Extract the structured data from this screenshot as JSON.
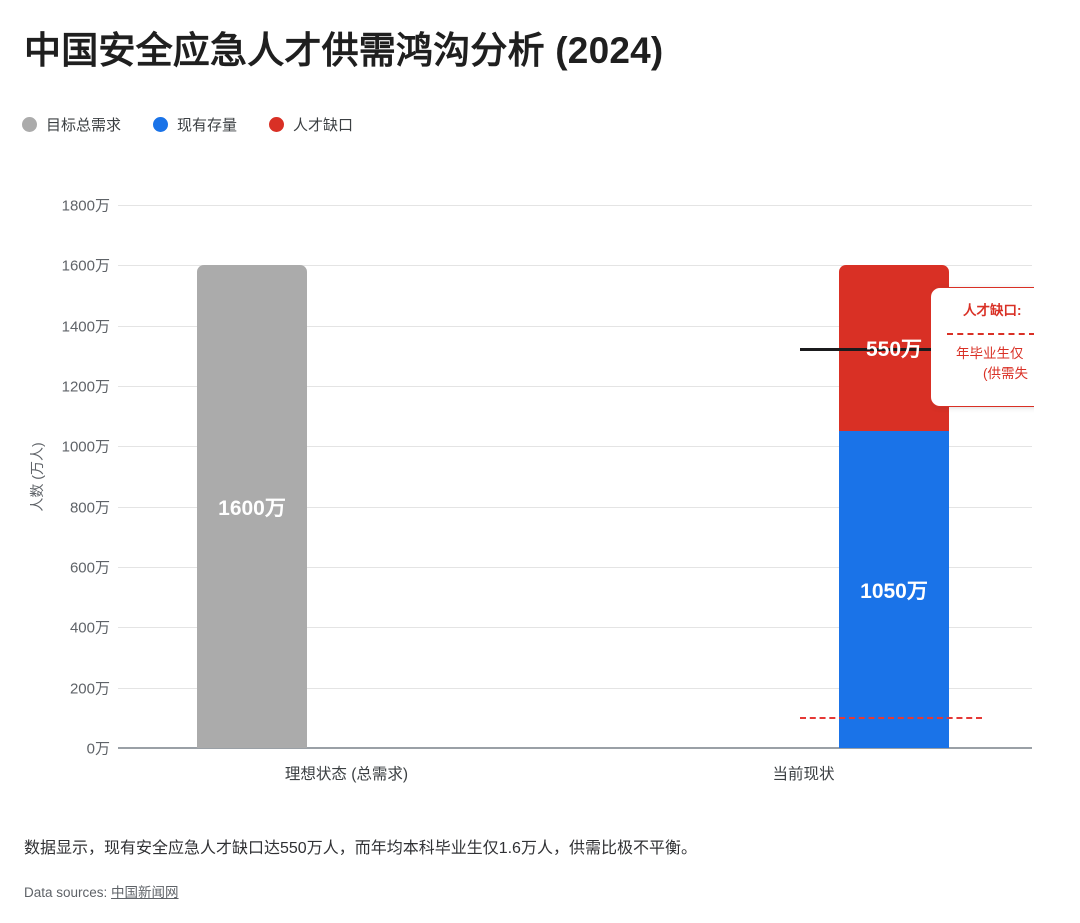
{
  "page": {
    "title": "中国安全应急人才供需鸿沟分析 (2024)",
    "note": "数据显示，现有安全应急人才缺口达550万人，而年均本科毕业生仅1.6万人，供需比极不平衡。",
    "source_prefix": "Data sources: ",
    "source_link": "中国新闻网"
  },
  "chart_data": {
    "type": "bar",
    "stacked": true,
    "categories": [
      "理想状态 (总需求)",
      "当前现状"
    ],
    "series": [
      {
        "id": "target-total-demand",
        "name": "目标总需求",
        "color": "#ababab",
        "values": [
          1600,
          null
        ],
        "labels": [
          "1600万",
          null
        ]
      },
      {
        "id": "existing-stock",
        "name": "现有存量",
        "color": "#1a73e8",
        "values": [
          null,
          1050
        ],
        "labels": [
          null,
          "1050万"
        ]
      },
      {
        "id": "talent-gap",
        "name": "人才缺口",
        "color": "#d93025",
        "values": [
          null,
          550
        ],
        "labels": [
          null,
          "550万"
        ]
      }
    ],
    "ylabel": "人数 (万人)",
    "ylim": [
      0,
      1800
    ],
    "ytick_step": 200,
    "ytick_suffix": "万",
    "grid": true,
    "legend_position": "top-left",
    "reference_line": {
      "value": 100,
      "color": "#e53935",
      "style": "dashed"
    },
    "callout": {
      "lines": [
        "人才缺口:",
        "年毕业生仅",
        "(供需失"
      ],
      "pointed_value_label": "550万",
      "text_color": "#d93025",
      "border_color": "#d93025"
    }
  }
}
